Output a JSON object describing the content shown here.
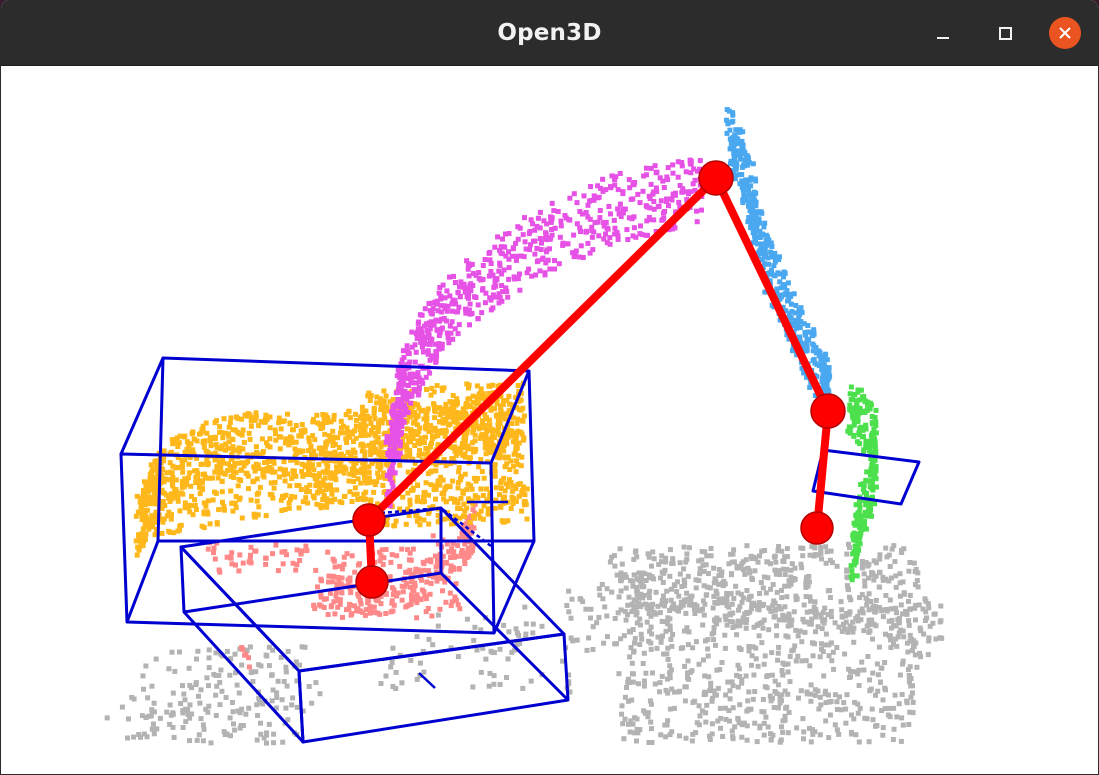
{
  "window": {
    "title": "Open3D",
    "controls": {
      "minimize": "minimize-icon",
      "maximize": "maximize-icon",
      "close": "close-icon"
    }
  },
  "scene": {
    "background": "#ffffff",
    "colors": {
      "skeleton": "#ff0000",
      "bounding_box": "#0000d0",
      "points_ground": "#b3b3b3",
      "points_cabin": "#ffb81c",
      "points_boom": "#e651e6",
      "points_arm": "#4aa8f0",
      "points_bucket": "#4ce04c",
      "points_chassis": "#ff8888"
    }
  }
}
